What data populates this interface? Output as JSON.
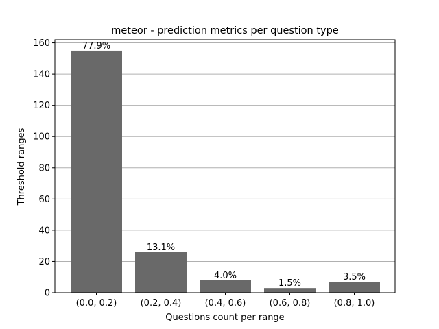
{
  "chart_data": {
    "type": "bar",
    "title": "meteor - prediction metrics per question type",
    "xlabel": "Questions count per range",
    "ylabel": "Threshold ranges",
    "categories": [
      "(0.0, 0.2)",
      "(0.2, 0.4)",
      "(0.4, 0.6)",
      "(0.6, 0.8)",
      "(0.8, 1.0)"
    ],
    "values": [
      155,
      26,
      8,
      3,
      7
    ],
    "data_labels": [
      "77.9%",
      "13.1%",
      "4.0%",
      "1.5%",
      "3.5%"
    ],
    "ylim": [
      0,
      162
    ],
    "yticks": [
      0,
      20,
      40,
      60,
      80,
      100,
      120,
      140,
      160
    ],
    "grid": "horizontal",
    "bar_color": "#696969",
    "grid_color": "#b0b0b0"
  }
}
